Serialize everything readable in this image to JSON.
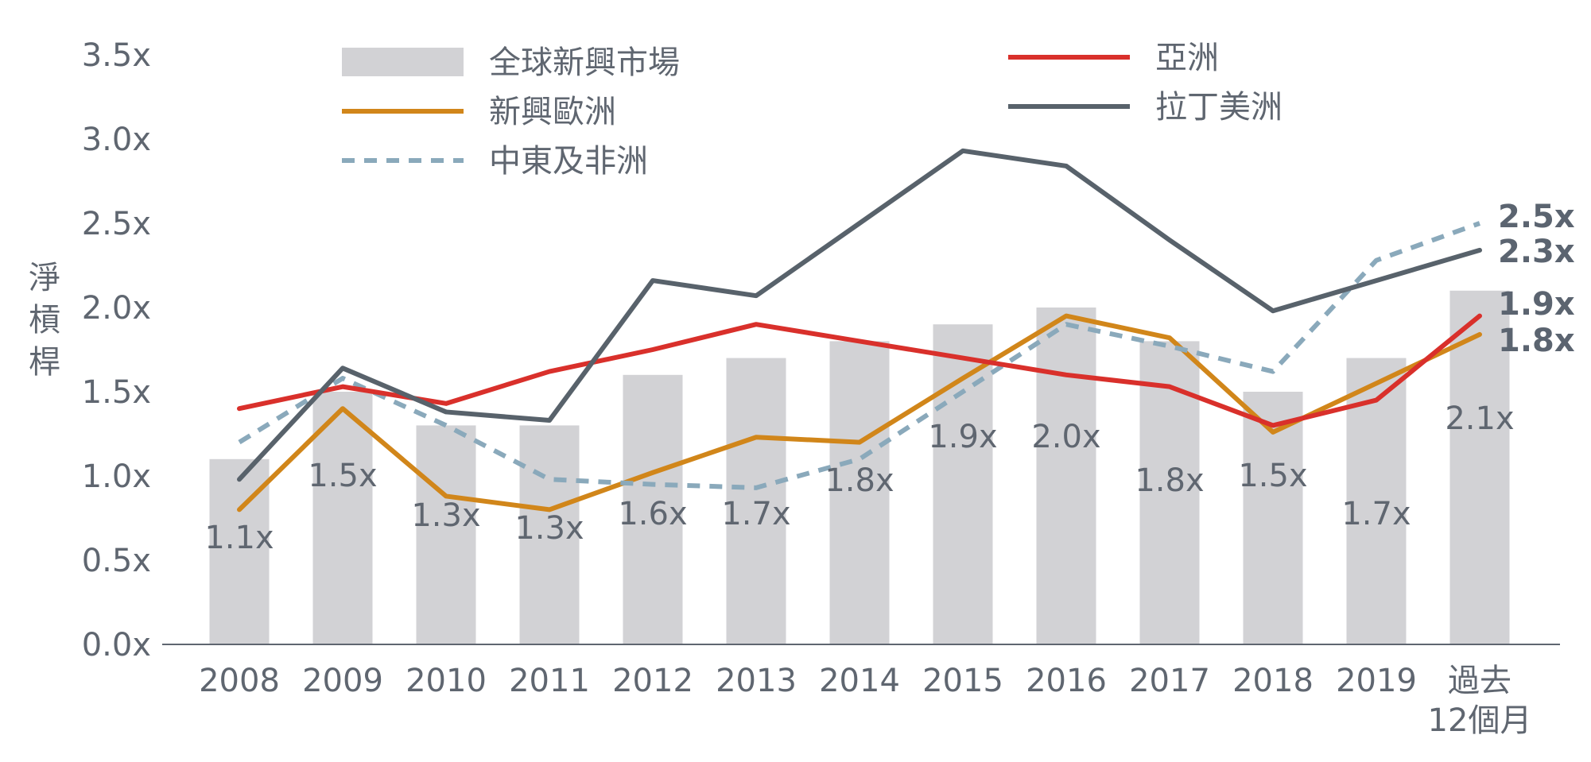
{
  "chart_data": {
    "type": "bar",
    "ylabel": "淨槓桿",
    "ylim": [
      0,
      3.5
    ],
    "yticks": [
      "0.0x",
      "0.5x",
      "1.0x",
      "1.5x",
      "2.0x",
      "2.5x",
      "3.0x",
      "3.5x"
    ],
    "categories": [
      "2008",
      "2009",
      "2010",
      "2011",
      "2012",
      "2013",
      "2014",
      "2015",
      "2016",
      "2017",
      "2018",
      "2019",
      "過去\n12個月"
    ],
    "grid": false,
    "legend_position": "top",
    "series": [
      {
        "name": "全球新興市場",
        "kind": "bar",
        "color": "#d2d2d5",
        "values": [
          1.1,
          1.5,
          1.3,
          1.3,
          1.6,
          1.7,
          1.8,
          1.9,
          2.0,
          1.8,
          1.5,
          1.7,
          2.1
        ],
        "labels": [
          "1.1x",
          "1.5x",
          "1.3x",
          "1.3x",
          "1.6x",
          "1.7x",
          "1.8x",
          "1.9x",
          "2.0x",
          "1.8x",
          "1.5x",
          "1.7x",
          "2.1x"
        ]
      },
      {
        "name": "新興歐洲",
        "kind": "line",
        "color": "#d1861a",
        "values": [
          0.8,
          1.4,
          0.88,
          0.8,
          1.02,
          1.23,
          1.2,
          1.58,
          1.95,
          1.82,
          1.26,
          1.55,
          1.84
        ],
        "end_label": "1.8x"
      },
      {
        "name": "中東及非洲",
        "kind": "dashed-line",
        "color": "#8aa9bb",
        "values": [
          1.2,
          1.58,
          1.3,
          0.98,
          0.95,
          0.93,
          1.1,
          1.5,
          1.9,
          1.77,
          1.62,
          2.28,
          2.5
        ],
        "end_label": "2.5x"
      },
      {
        "name": "亞洲",
        "kind": "line",
        "color": "#d9302b",
        "values": [
          1.4,
          1.53,
          1.43,
          1.62,
          1.75,
          1.9,
          1.8,
          1.7,
          1.6,
          1.53,
          1.3,
          1.45,
          1.95
        ],
        "end_label": "1.9x"
      },
      {
        "name": "拉丁美洲",
        "kind": "line",
        "color": "#58626b",
        "values": [
          0.98,
          1.64,
          1.38,
          1.33,
          2.16,
          2.07,
          2.5,
          2.93,
          2.84,
          2.4,
          1.98,
          2.16,
          2.34
        ],
        "end_label": "2.3x"
      }
    ]
  }
}
